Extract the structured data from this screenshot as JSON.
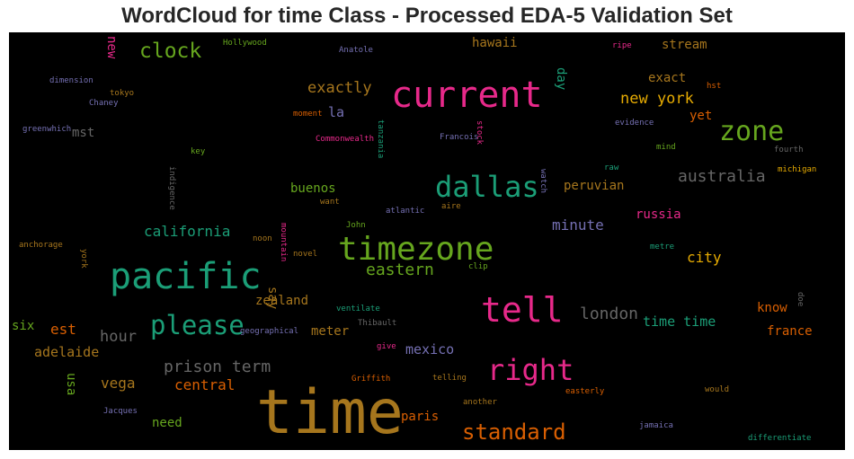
{
  "chart_data": {
    "type": "wordcloud",
    "title": "WordCloud for time Class - Processed EDA-5 Validation Set",
    "background": "#000000",
    "colormap": [
      "#1b9e77",
      "#d95f02",
      "#7570b3",
      "#e7298a",
      "#66a61e",
      "#e6ab02",
      "#a6761d",
      "#666666"
    ],
    "words": [
      {
        "text": "time",
        "weight": 1.0,
        "color": "#a6761d"
      },
      {
        "text": "current",
        "weight": 0.62,
        "color": "#e7298a"
      },
      {
        "text": "pacific",
        "weight": 0.62,
        "color": "#1b9e77"
      },
      {
        "text": "timezone",
        "weight": 0.55,
        "color": "#66a61e"
      },
      {
        "text": "tell",
        "weight": 0.58,
        "color": "#e7298a"
      },
      {
        "text": "right",
        "weight": 0.5,
        "color": "#e7298a"
      },
      {
        "text": "dallas",
        "weight": 0.48,
        "color": "#1b9e77"
      },
      {
        "text": "zone",
        "weight": 0.45,
        "color": "#66a61e"
      },
      {
        "text": "please",
        "weight": 0.45,
        "color": "#1b9e77"
      },
      {
        "text": "standard",
        "weight": 0.38,
        "color": "#d95f02"
      },
      {
        "text": "clock",
        "weight": 0.36,
        "color": "#66a61e"
      },
      {
        "text": "prison term",
        "weight": 0.3,
        "color": "#666666"
      },
      {
        "text": "australia",
        "weight": 0.3,
        "color": "#666666"
      },
      {
        "text": "eastern",
        "weight": 0.29,
        "color": "#66a61e"
      },
      {
        "text": "london",
        "weight": 0.29,
        "color": "#666666"
      },
      {
        "text": "new york",
        "weight": 0.28,
        "color": "#e6ab02"
      },
      {
        "text": "exactly",
        "weight": 0.27,
        "color": "#a6761d"
      },
      {
        "text": "hour",
        "weight": 0.27,
        "color": "#666666"
      },
      {
        "text": "california",
        "weight": 0.25,
        "color": "#1b9e77"
      },
      {
        "text": "minute",
        "weight": 0.25,
        "color": "#7570b3"
      },
      {
        "text": "time time",
        "weight": 0.24,
        "color": "#1b9e77"
      },
      {
        "text": "adelaide",
        "weight": 0.24,
        "color": "#a6761d"
      },
      {
        "text": "central",
        "weight": 0.24,
        "color": "#d95f02"
      },
      {
        "text": "vega",
        "weight": 0.24,
        "color": "#a6761d"
      },
      {
        "text": "est",
        "weight": 0.24,
        "color": "#d95f02"
      },
      {
        "text": "city",
        "weight": 0.24,
        "color": "#e6ab02"
      },
      {
        "text": "mexico",
        "weight": 0.23,
        "color": "#7570b3"
      },
      {
        "text": "paris",
        "weight": 0.22,
        "color": "#d95f02"
      },
      {
        "text": "la",
        "weight": 0.22,
        "color": "#7570b3"
      },
      {
        "text": "zealand",
        "weight": 0.22,
        "color": "#a6761d"
      },
      {
        "text": "france",
        "weight": 0.21,
        "color": "#d95f02"
      },
      {
        "text": "know",
        "weight": 0.21,
        "color": "#d95f02"
      },
      {
        "text": "meter",
        "weight": 0.21,
        "color": "#a6761d"
      },
      {
        "text": "need",
        "weight": 0.21,
        "color": "#66a61e"
      },
      {
        "text": "exact",
        "weight": 0.2,
        "color": "#a6761d"
      },
      {
        "text": "yet",
        "weight": 0.2,
        "color": "#d95f02"
      },
      {
        "text": "peruvian",
        "weight": 0.2,
        "color": "#a6761d"
      },
      {
        "text": "buenos",
        "weight": 0.2,
        "color": "#66a61e"
      },
      {
        "text": "russia",
        "weight": 0.2,
        "color": "#e7298a"
      },
      {
        "text": "stream",
        "weight": 0.2,
        "color": "#a6761d"
      },
      {
        "text": "hawaii",
        "weight": 0.2,
        "color": "#a6761d"
      },
      {
        "text": "mst",
        "weight": 0.2,
        "color": "#666666"
      },
      {
        "text": "six",
        "weight": 0.2,
        "color": "#66a61e"
      },
      {
        "text": "new",
        "weight": 0.19,
        "color": "#e7298a"
      },
      {
        "text": "day",
        "weight": 0.18,
        "color": "#1b9e77"
      },
      {
        "text": "say",
        "weight": 0.18,
        "color": "#a6761d"
      },
      {
        "text": "usa",
        "weight": 0.18,
        "color": "#66a61e"
      },
      {
        "text": "Hollywood",
        "weight": 0.1,
        "color": "#66a61e"
      },
      {
        "text": "Anatole",
        "weight": 0.1,
        "color": "#7570b3"
      },
      {
        "text": "ripe",
        "weight": 0.1,
        "color": "#e7298a"
      },
      {
        "text": "dimension",
        "weight": 0.1,
        "color": "#7570b3"
      },
      {
        "text": "tokyo",
        "weight": 0.1,
        "color": "#a6761d"
      },
      {
        "text": "Chaney",
        "weight": 0.1,
        "color": "#7570b3"
      },
      {
        "text": "hst",
        "weight": 0.1,
        "color": "#d95f02"
      },
      {
        "text": "greenwhich",
        "weight": 0.1,
        "color": "#7570b3"
      },
      {
        "text": "moment",
        "weight": 0.1,
        "color": "#d95f02"
      },
      {
        "text": "evidence",
        "weight": 0.1,
        "color": "#7570b3"
      },
      {
        "text": "Commonwealth",
        "weight": 0.1,
        "color": "#e7298a"
      },
      {
        "text": "tanzania",
        "weight": 0.1,
        "color": "#1b9e77"
      },
      {
        "text": "stock",
        "weight": 0.1,
        "color": "#e7298a"
      },
      {
        "text": "Francois",
        "weight": 0.1,
        "color": "#7570b3"
      },
      {
        "text": "mind",
        "weight": 0.1,
        "color": "#66a61e"
      },
      {
        "text": "fourth",
        "weight": 0.1,
        "color": "#666666"
      },
      {
        "text": "key",
        "weight": 0.1,
        "color": "#66a61e"
      },
      {
        "text": "raw",
        "weight": 0.1,
        "color": "#1b9e77"
      },
      {
        "text": "michigan",
        "weight": 0.1,
        "color": "#e6ab02"
      },
      {
        "text": "indigence",
        "weight": 0.1,
        "color": "#666666"
      },
      {
        "text": "watch",
        "weight": 0.1,
        "color": "#7570b3"
      },
      {
        "text": "want",
        "weight": 0.1,
        "color": "#a6761d"
      },
      {
        "text": "aire",
        "weight": 0.1,
        "color": "#a6761d"
      },
      {
        "text": "atlantic",
        "weight": 0.1,
        "color": "#7570b3"
      },
      {
        "text": "John",
        "weight": 0.1,
        "color": "#66a61e"
      },
      {
        "text": "noon",
        "weight": 0.1,
        "color": "#a6761d"
      },
      {
        "text": "mountain",
        "weight": 0.1,
        "color": "#e7298a"
      },
      {
        "text": "anchorage",
        "weight": 0.1,
        "color": "#a6761d"
      },
      {
        "text": "york",
        "weight": 0.1,
        "color": "#a6761d"
      },
      {
        "text": "metre",
        "weight": 0.1,
        "color": "#1b9e77"
      },
      {
        "text": "novel",
        "weight": 0.1,
        "color": "#a6761d"
      },
      {
        "text": "clip",
        "weight": 0.1,
        "color": "#66a61e"
      },
      {
        "text": "doe",
        "weight": 0.1,
        "color": "#666666"
      },
      {
        "text": "ventilate",
        "weight": 0.1,
        "color": "#1b9e77"
      },
      {
        "text": "Thibault",
        "weight": 0.1,
        "color": "#666666"
      },
      {
        "text": "geographical",
        "weight": 0.1,
        "color": "#7570b3"
      },
      {
        "text": "give",
        "weight": 0.1,
        "color": "#e7298a"
      },
      {
        "text": "Griffith",
        "weight": 0.1,
        "color": "#d95f02"
      },
      {
        "text": "telling",
        "weight": 0.1,
        "color": "#a6761d"
      },
      {
        "text": "easterly",
        "weight": 0.1,
        "color": "#d95f02"
      },
      {
        "text": "would",
        "weight": 0.1,
        "color": "#a6761d"
      },
      {
        "text": "Jacques",
        "weight": 0.1,
        "color": "#7570b3"
      },
      {
        "text": "another",
        "weight": 0.1,
        "color": "#a6761d"
      },
      {
        "text": "jamaica",
        "weight": 0.1,
        "color": "#7570b3"
      },
      {
        "text": "differentiate",
        "weight": 0.1,
        "color": "#1b9e77"
      }
    ]
  }
}
